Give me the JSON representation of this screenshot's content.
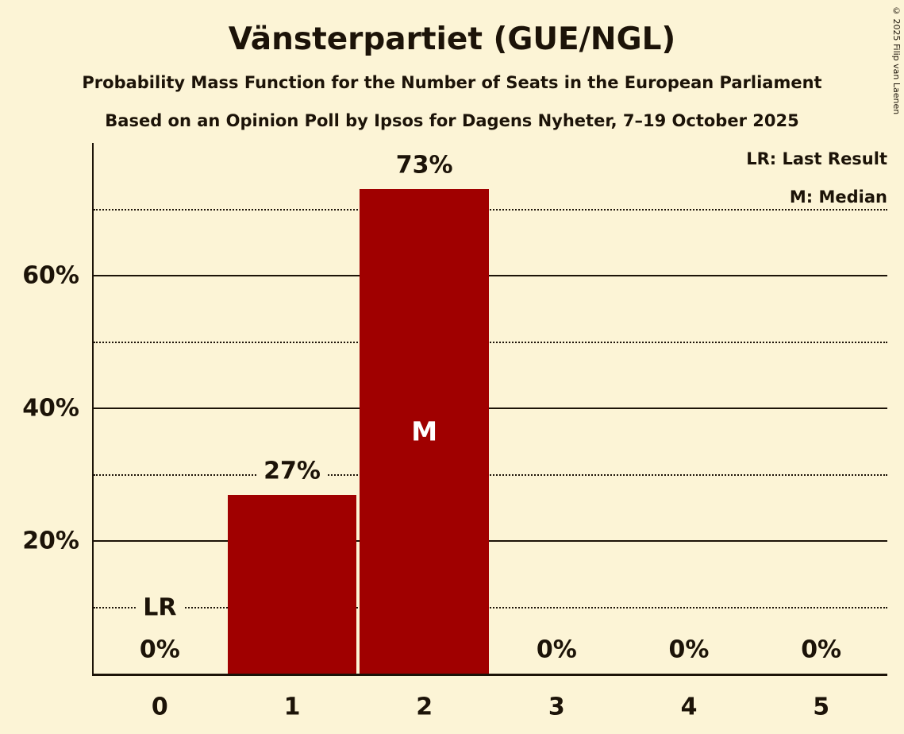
{
  "title": "Vänsterpartiet (GUE/NGL)",
  "subtitle1": "Probability Mass Function for the Number of Seats in the European Parliament",
  "subtitle2": "Based on an Opinion Poll by Ipsos for Dagens Nyheter, 7–19 October 2025",
  "copyright": "© 2025 Filip van Laenen",
  "legend": {
    "last_result": "LR: Last Result",
    "median": "M: Median"
  },
  "colors": {
    "background": "#fcf4d6",
    "bar": "#a00000",
    "text": "#1c1308",
    "median_text": "#ffffff"
  },
  "chart_data": {
    "type": "bar",
    "title": "Vänsterpartiet (GUE/NGL)",
    "categories": [
      "0",
      "1",
      "2",
      "3",
      "4",
      "5"
    ],
    "values": [
      0,
      27,
      73,
      0,
      0,
      0
    ],
    "value_labels": [
      "0%",
      "27%",
      "73%",
      "0%",
      "0%",
      "0%"
    ],
    "xlabel": "",
    "ylabel": "",
    "ylim": [
      0,
      80
    ],
    "ytick_values": [
      20,
      40,
      60
    ],
    "ytick_labels": [
      "20%",
      "40%",
      "60%"
    ],
    "dotted_gridlines": [
      10,
      30,
      50,
      70
    ],
    "median_category": "2",
    "median_marker": "M",
    "last_result_category": "0",
    "last_result_marker": "LR",
    "last_result_line_value": 10,
    "legend_position": "top-right",
    "grid": "on"
  }
}
